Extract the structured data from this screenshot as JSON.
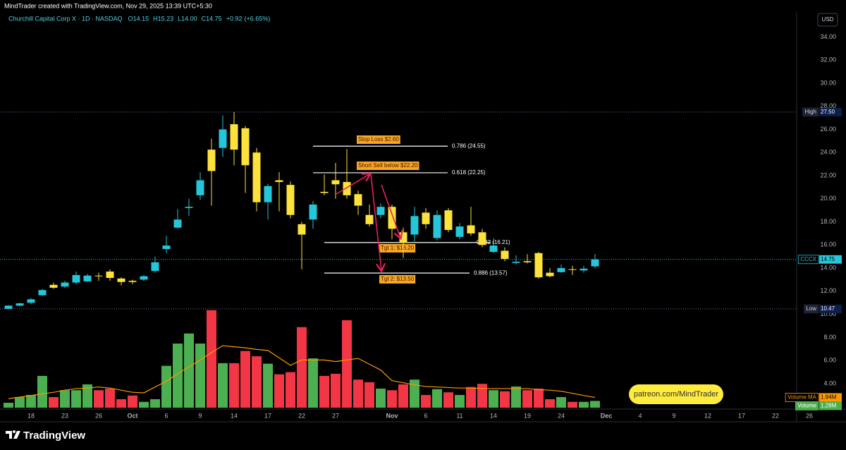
{
  "header": {
    "title": "MindTrader created with TradingView.com, Nov 29, 2025 13:39 UTC+5:30"
  },
  "chart_data": {
    "type": "candlestick",
    "symbol": "Churchill Capital Corp X · 1D · NASDAQ",
    "legend_values": [
      {
        "value": 14.15,
        "label": "O14.15"
      },
      {
        "value": 15.23,
        "label": "H15.23"
      },
      {
        "value": 14.0,
        "label": "L14.00"
      },
      {
        "value": 14.75,
        "label": "C14.75"
      },
      {
        "value": 0.92,
        "label": "+0.92"
      },
      {
        "value": 6.65,
        "label": "(+6.65%)"
      }
    ],
    "currency": "USD",
    "up_color": "#26c6da",
    "down_color": "#fde23c",
    "volume_up_color": "#4caf50",
    "volume_down_color": "#f23645",
    "volume_ma_color": "#ff9800",
    "categories": [
      null,
      null,
      "18",
      null,
      null,
      "23",
      null,
      null,
      "26",
      null,
      null,
      "Oct",
      null,
      null,
      "6",
      null,
      null,
      "9",
      null,
      null,
      "14",
      null,
      null,
      "17",
      null,
      null,
      "22",
      null,
      null,
      "27",
      null,
      null,
      null,
      null,
      "Nov",
      null,
      null,
      "6",
      null,
      null,
      "11",
      null,
      null,
      "14",
      null,
      null,
      "19",
      null,
      null,
      "24",
      null,
      null,
      null,
      "Dec",
      null,
      null,
      "4",
      null,
      null,
      "9",
      null,
      null,
      "12",
      null,
      null,
      "17",
      null,
      null,
      "22",
      null,
      null,
      "26"
    ],
    "open": [
      10.47,
      10.75,
      11.0,
      11.65,
      12.55,
      12.4,
      12.75,
      12.85,
      13.35,
      13.7,
      13.1,
      12.9,
      13.0,
      13.75,
      15.65,
      17.5,
      19.2,
      20.3,
      24.25,
      24.4,
      26.45,
      26.1,
      24.0,
      19.7,
      21.6,
      21.2,
      17.8,
      18.2,
      20.6,
      21.6,
      21.45,
      20.4,
      18.6,
      18.6,
      19.3,
      17.1,
      16.9,
      18.8,
      16.6,
      19.0,
      16.7,
      17.7,
      17.1,
      15.4,
      15.5,
      14.45,
      14.6,
      15.3,
      13.6,
      13.65,
      13.9,
      13.8,
      14.15,
      null,
      null,
      null,
      null,
      null,
      null,
      null,
      null,
      null,
      null,
      null,
      null,
      null,
      null,
      null,
      null,
      null,
      null,
      null
    ],
    "high": [
      10.8,
      11.0,
      11.4,
      12.2,
      12.75,
      12.9,
      13.7,
      13.5,
      13.6,
      13.9,
      13.2,
      13.0,
      13.4,
      15.0,
      16.8,
      19.1,
      20.0,
      22.3,
      25.2,
      27.2,
      27.5,
      26.3,
      24.4,
      21.3,
      22.3,
      21.5,
      18.0,
      19.8,
      22.1,
      23.1,
      24.3,
      20.7,
      19.5,
      19.6,
      19.5,
      17.5,
      19.3,
      19.2,
      19.0,
      19.2,
      17.9,
      19.3,
      17.4,
      16.6,
      15.8,
      15.1,
      15.2,
      15.4,
      14.0,
      14.3,
      14.2,
      14.2,
      15.23,
      null,
      null,
      null,
      null,
      null,
      null,
      null,
      null,
      null,
      null,
      null,
      null,
      null,
      null,
      null,
      null,
      null,
      null,
      null
    ],
    "low": [
      10.47,
      10.7,
      10.9,
      11.6,
      12.2,
      12.3,
      12.6,
      12.8,
      12.9,
      12.9,
      12.5,
      12.6,
      12.9,
      13.6,
      15.3,
      17.4,
      18.5,
      19.9,
      19.4,
      23.6,
      22.9,
      20.5,
      18.9,
      18.2,
      18.9,
      18.3,
      13.9,
      17.4,
      20.3,
      20.0,
      20.0,
      18.6,
      17.6,
      18.3,
      16.5,
      14.9,
      16.3,
      17.4,
      16.4,
      17.1,
      16.5,
      16.8,
      15.8,
      15.3,
      14.6,
      14.3,
      14.4,
      13.1,
      13.2,
      13.6,
      13.4,
      13.6,
      14.0,
      null,
      null,
      null,
      null,
      null,
      null,
      null,
      null,
      null,
      null,
      null,
      null,
      null,
      null,
      null,
      null,
      null,
      null,
      null
    ],
    "close": [
      10.75,
      10.95,
      11.3,
      12.1,
      12.3,
      12.75,
      13.4,
      13.35,
      13.3,
      13.15,
      12.8,
      12.8,
      13.3,
      14.5,
      15.95,
      18.2,
      19.3,
      21.6,
      22.4,
      26.0,
      24.25,
      22.9,
      19.7,
      21.1,
      21.45,
      18.6,
      16.9,
      19.5,
      20.5,
      21.25,
      20.3,
      19.4,
      17.8,
      19.3,
      17.4,
      16.2,
      18.5,
      17.8,
      18.6,
      17.3,
      17.6,
      17.0,
      16.0,
      15.95,
      14.8,
      14.55,
      14.5,
      13.2,
      13.3,
      14.0,
      13.85,
      13.95,
      14.75,
      null,
      null,
      null,
      null,
      null,
      null,
      null,
      null,
      null,
      null,
      null,
      null,
      null,
      null,
      null,
      null,
      null,
      null,
      null
    ],
    "volume": [
      0.93,
      2.0,
      2.4,
      6.0,
      2.0,
      3.3,
      3.3,
      4.4,
      3.3,
      3.6,
      1.6,
      2.3,
      1.1,
      1.6,
      7.9,
      12.1,
      14.0,
      12.1,
      18.4,
      8.4,
      8.4,
      10.7,
      9.7,
      8.3,
      6.3,
      6.7,
      15.2,
      9.3,
      6.0,
      6.4,
      16.5,
      5.3,
      4.8,
      3.6,
      3.3,
      4.4,
      5.3,
      2.4,
      3.5,
      2.9,
      2.4,
      3.9,
      4.5,
      3.3,
      3.1,
      4.0,
      3.3,
      3.6,
      1.6,
      2.0,
      1.1,
      1.1,
      1.28,
      null,
      null,
      null,
      null,
      null,
      null,
      null,
      null,
      null,
      null,
      null,
      null,
      null,
      null,
      null,
      null,
      null,
      null,
      null
    ],
    "volume_ma": [
      1.7,
      2.0,
      2.3,
      2.6,
      2.9,
      3.3,
      3.6,
      3.7,
      3.9,
      3.7,
      3.3,
      2.9,
      2.8,
      3.9,
      5.0,
      6.4,
      7.7,
      9.0,
      10.4,
      11.7,
      11.5,
      11.3,
      11.0,
      10.8,
      9.4,
      8.0,
      9.0,
      9.0,
      9.0,
      8.7,
      9.0,
      9.3,
      8.2,
      7.1,
      5.1,
      4.7,
      4.3,
      4.0,
      3.9,
      3.8,
      3.7,
      3.7,
      3.6,
      3.6,
      3.6,
      3.6,
      3.6,
      3.4,
      3.3,
      3.1,
      2.7,
      2.3,
      1.94,
      null,
      null,
      null,
      null,
      null,
      null,
      null,
      null,
      null,
      null,
      null,
      null,
      null,
      null,
      null,
      null,
      null,
      null,
      null
    ],
    "ylim": [
      1.8,
      35
    ],
    "yticks": [
      {
        "value": 4,
        "label": "4.00"
      },
      {
        "value": 6,
        "label": "6.00"
      },
      {
        "value": 8,
        "label": "8.00"
      },
      {
        "value": 10,
        "label": "10.00"
      },
      {
        "value": 12,
        "label": "12.00"
      },
      {
        "value": 14,
        "label": "14.00"
      },
      {
        "value": 16,
        "label": "16.00"
      },
      {
        "value": 18,
        "label": "18.00"
      },
      {
        "value": 20,
        "label": "20.00"
      },
      {
        "value": 22,
        "label": "22.00"
      },
      {
        "value": 24,
        "label": "24.00"
      },
      {
        "value": 26,
        "label": "26.00"
      },
      {
        "value": 28,
        "label": "28.00"
      },
      {
        "value": 30,
        "label": "30.00"
      },
      {
        "value": 32,
        "label": "32.00"
      },
      {
        "value": 34,
        "label": "34.00"
      }
    ],
    "y2lim": [
      0,
      18.9
    ],
    "grid": false,
    "price_labels": [
      {
        "name": "High",
        "value": 27.5,
        "label": "27.50"
      },
      {
        "name": "CCCX",
        "value": 14.75,
        "label": "14.75"
      },
      {
        "name": "Low",
        "value": 10.47,
        "label": "10.47"
      }
    ],
    "volume_labels": [
      {
        "name": "Volume MA",
        "value": 1.94,
        "label": "1.94M"
      },
      {
        "name": "Volume",
        "value": 1.28,
        "label": "1.28M"
      }
    ],
    "fib_levels": [
      {
        "value": 24.55,
        "label": "0.786 (24.55)"
      },
      {
        "value": 22.25,
        "label": "0.618 (22.25)"
      },
      {
        "value": 16.21,
        "label": "0.382 (16.21)"
      },
      {
        "value": 13.57,
        "label": "0.886 (13.57)"
      }
    ],
    "annotations": [
      "Stop Loss $2.60",
      "Short Sell below $22.20",
      "Tgt 1: $16.20",
      "Tgt 2: $13.50"
    ]
  },
  "watermark": "patreon.com/MindTrader",
  "footer": {
    "logo": "TradingView"
  }
}
